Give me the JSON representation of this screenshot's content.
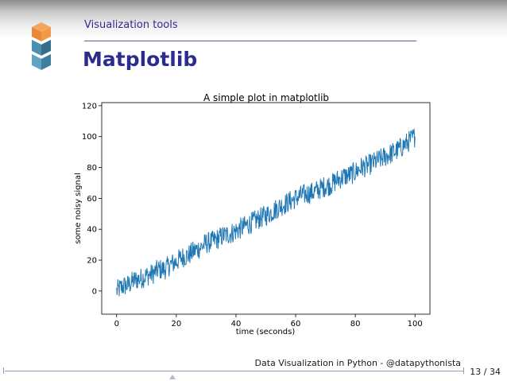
{
  "slide": {
    "section_title": "Visualization tools",
    "title": "Matplotlib",
    "footer": "Data Visualization in Python - @datapythonista",
    "page_number": "13 / 34",
    "colors": {
      "title": "#2c2c8f",
      "series": "#1f77b4"
    }
  },
  "chart_data": {
    "type": "line",
    "title": "A simple plot in matplotlib",
    "xlabel": "time (seconds)",
    "ylabel": "some noisy signal",
    "xlim": [
      -5,
      105
    ],
    "ylim": [
      -15,
      122
    ],
    "xticks": [
      0,
      20,
      40,
      60,
      80,
      100
    ],
    "yticks": [
      0,
      20,
      40,
      60,
      80,
      100,
      120
    ],
    "grid": false,
    "series": [
      {
        "color": "#1f77b4",
        "x": [
          0,
          2,
          4,
          6,
          8,
          10,
          12,
          14,
          16,
          18,
          20,
          22,
          24,
          26,
          28,
          30,
          32,
          34,
          36,
          38,
          40,
          42,
          44,
          46,
          48,
          50,
          52,
          54,
          56,
          58,
          60,
          62,
          64,
          66,
          68,
          70,
          72,
          74,
          76,
          78,
          80,
          82,
          84,
          86,
          88,
          90,
          92,
          94,
          96,
          98,
          100
        ],
        "y": [
          0,
          3,
          4,
          7,
          8,
          10,
          11,
          14,
          14,
          17,
          19,
          22,
          23,
          26,
          28,
          31,
          32,
          34,
          36,
          37,
          39,
          41,
          43,
          45,
          47,
          49,
          51,
          54,
          56,
          58,
          60,
          62,
          63,
          64,
          66,
          68,
          69,
          72,
          74,
          75,
          77,
          80,
          81,
          83,
          85,
          87,
          89,
          91,
          94,
          97,
          100
        ]
      }
    ]
  }
}
